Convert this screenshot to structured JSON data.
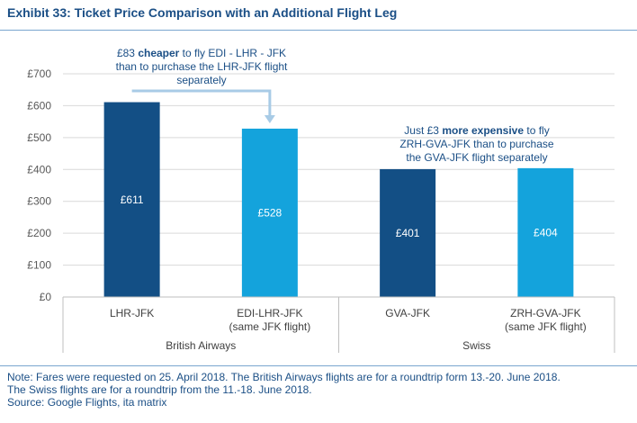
{
  "title": "Exhibit 33: Ticket Price Comparison with an Additional Flight Leg",
  "colors": {
    "dark": "#134f85",
    "light": "#14a3dc",
    "annotation": "#1b4f86",
    "grid": "#d9d9d9"
  },
  "chart_data": {
    "type": "bar",
    "ylim": [
      0,
      700
    ],
    "yticks": [
      0,
      100,
      200,
      300,
      400,
      500,
      600,
      700
    ],
    "ytick_labels": [
      "£0",
      "£100",
      "£200",
      "£300",
      "£400",
      "£500",
      "£600",
      "£700"
    ],
    "grid": true,
    "bars": [
      {
        "label_lines": [
          "LHR-JFK"
        ],
        "value": 611,
        "value_label": "£611",
        "color": "#134f85",
        "group": "British Airways"
      },
      {
        "label_lines": [
          "EDI-LHR-JFK",
          "(same JFK flight)"
        ],
        "value": 528,
        "value_label": "£528",
        "color": "#14a3dc",
        "group": "British Airways"
      },
      {
        "label_lines": [
          "GVA-JFK"
        ],
        "value": 401,
        "value_label": "£401",
        "color": "#134f85",
        "group": "Swiss"
      },
      {
        "label_lines": [
          "ZRH-GVA-JFK",
          "(same JFK flight)"
        ],
        "value": 404,
        "value_label": "£404",
        "color": "#14a3dc",
        "group": "Swiss"
      }
    ],
    "groups": [
      "British Airways",
      "Swiss"
    ],
    "annotations": [
      {
        "lines": [
          [
            {
              "text": "£83 ",
              "bold": false
            },
            {
              "text": "cheaper",
              "bold": true
            },
            {
              "text": " to fly EDI - LHR - JFK",
              "bold": false
            }
          ],
          [
            {
              "text": "than to purchase the LHR-JFK flight",
              "bold": false
            }
          ],
          [
            {
              "text": "separately",
              "bold": false
            }
          ]
        ]
      },
      {
        "lines": [
          [
            {
              "text": "Just £3 ",
              "bold": false
            },
            {
              "text": "more expensive",
              "bold": true
            },
            {
              "text": " to fly",
              "bold": false
            }
          ],
          [
            {
              "text": "ZRH-GVA-JFK than to purchase",
              "bold": false
            }
          ],
          [
            {
              "text": "the GVA-JFK flight separately",
              "bold": false
            }
          ]
        ]
      }
    ]
  },
  "notes": [
    "Note: Fares were requested on 25. April 2018. The British Airways flights are for a roundtrip form 13.-20. June 2018.",
    "The Swiss flights are for a roundtrip from the 11.-18. June 2018.",
    "Source: Google Flights, ita matrix"
  ]
}
